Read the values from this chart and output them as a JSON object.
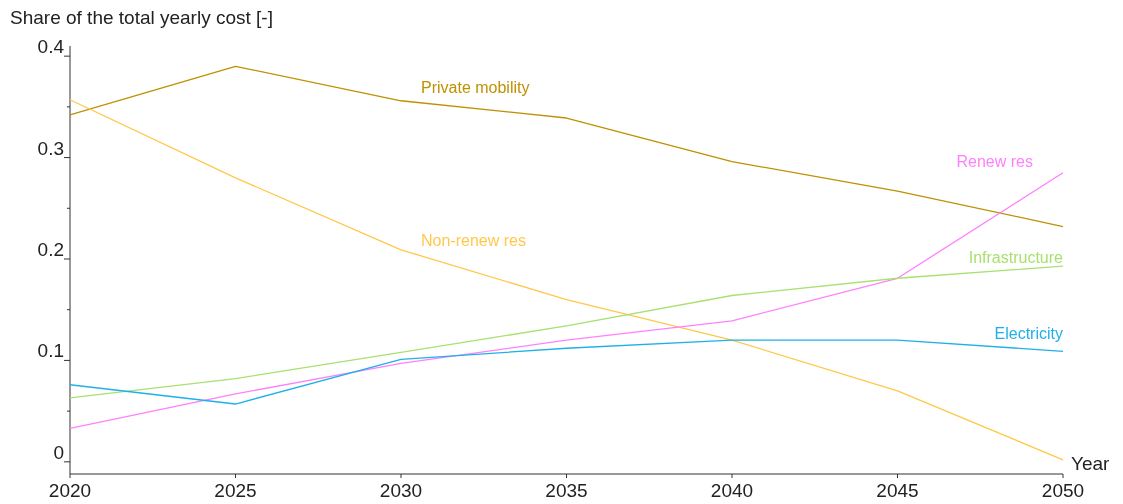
{
  "chart_data": {
    "type": "line",
    "ylabel": "Share of the total yearly cost  [-]",
    "xlabel": "Year",
    "x": [
      2020,
      2025,
      2030,
      2035,
      2040,
      2045,
      2050
    ],
    "xlim": [
      2020,
      2050
    ],
    "xticks": [
      2020,
      2025,
      2030,
      2035,
      2040,
      2045,
      2050
    ],
    "ylim": [
      -0.012,
      0.41
    ],
    "yticks": [
      0,
      {
        "value": 0.05,
        "label": null
      },
      0.1,
      {
        "value": 0.15,
        "label": null
      },
      0.2,
      {
        "value": 0.25,
        "label": null
      },
      0.3,
      {
        "value": 0.35,
        "label": null
      },
      0.4
    ],
    "grid": false,
    "marker": "none",
    "line_style": "solid",
    "series": [
      {
        "name": "Private mobility",
        "color": "#bf9000",
        "values": [
          0.342,
          0.39,
          0.356,
          0.339,
          0.296,
          0.267,
          0.232
        ]
      },
      {
        "name": "Non-renew res",
        "color": "#ffc84a",
        "values": [
          0.357,
          0.28,
          0.209,
          0.16,
          0.12,
          0.07,
          0.002
        ]
      },
      {
        "name": "Renew res",
        "color": "#ff80ff",
        "values": [
          0.033,
          0.067,
          0.097,
          0.12,
          0.139,
          0.181,
          0.285
        ]
      },
      {
        "name": "Infrastructure",
        "color": "#a9e070",
        "values": [
          0.063,
          0.082,
          0.108,
          0.134,
          0.164,
          0.181,
          0.193
        ]
      },
      {
        "name": "Electricity",
        "color": "#1fb0e8",
        "values": [
          0.076,
          0.057,
          0.101,
          0.112,
          0.12,
          0.12,
          0.109
        ]
      }
    ]
  }
}
